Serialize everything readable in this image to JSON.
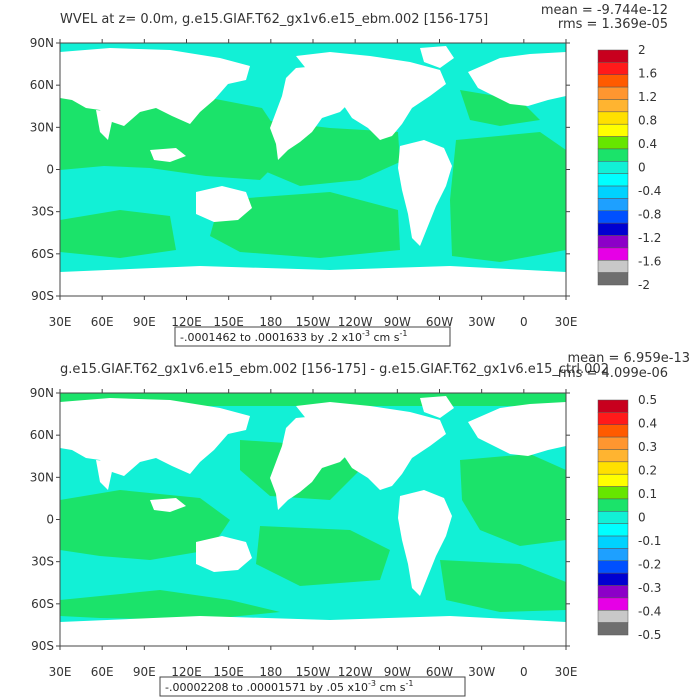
{
  "panels": [
    {
      "title": "WVEL at z=    0.0m, g.e15.GIAF.T62_gx1v6.e15_ebm.002 [156-175]",
      "mean_text": "mean = -9.744e-12",
      "rms_text": "rms = 1.369e-05",
      "range_text": "-.0001462 to .0001633 by .2 x10",
      "range_exp": "-3",
      "range_unit": " cm s",
      "range_unit_exp": "-1",
      "field_color": "#1be36a",
      "ocean_color": "#12f0d6",
      "colorbar": {
        "colors": [
          "#c8001e",
          "#ff1a1a",
          "#ff5a00",
          "#ff9630",
          "#ffb430",
          "#ffe000",
          "#ffff00",
          "#66e600",
          "#1be36a",
          "#12f0d6",
          "#00ffff",
          "#00d2ff",
          "#1ea0ff",
          "#0050ff",
          "#0000d0",
          "#8c00c8",
          "#e600e6",
          "#c8c8c8",
          "#6e6e6e"
        ],
        "labels": [
          "2",
          "1.6",
          "1.2",
          "0.8",
          "0.4",
          "0",
          "-0.4",
          "-0.8",
          "-1.2",
          "-1.6",
          "-2"
        ]
      }
    },
    {
      "title": "g.e15.GIAF.T62_gx1v6.e15_ebm.002 [156-175] - g.e15.GIAF.T62_gx1v6.e15_ctrl.002",
      "mean_text": "mean = 6.959e-13",
      "rms_text": "rms = 4.099e-06",
      "range_text": "-.00002208 to .00001571 by .05 x10",
      "range_exp": "-3",
      "range_unit": " cm s",
      "range_unit_exp": "-1",
      "field_color": "#1be36a",
      "ocean_color": "#12f0d6",
      "colorbar": {
        "colors": [
          "#c8001e",
          "#ff1a1a",
          "#ff5a00",
          "#ff9630",
          "#ffb430",
          "#ffe000",
          "#ffff00",
          "#66e600",
          "#1be36a",
          "#12f0d6",
          "#00ffff",
          "#00d2ff",
          "#1ea0ff",
          "#0050ff",
          "#0000d0",
          "#8c00c8",
          "#e600e6",
          "#c8c8c8",
          "#6e6e6e"
        ],
        "labels": [
          "0.5",
          "0.4",
          "0.3",
          "0.2",
          "0.1",
          "0",
          "-0.1",
          "-0.2",
          "-0.3",
          "-0.4",
          "-0.5"
        ]
      }
    }
  ],
  "axes": {
    "lat_labels": [
      "90N",
      "60N",
      "30N",
      "0",
      "30S",
      "60S",
      "90S"
    ],
    "lon_labels": [
      "30E",
      "60E",
      "90E",
      "120E",
      "150E",
      "180",
      "150W",
      "120W",
      "90W",
      "60W",
      "30W",
      "0",
      "30E"
    ]
  }
}
